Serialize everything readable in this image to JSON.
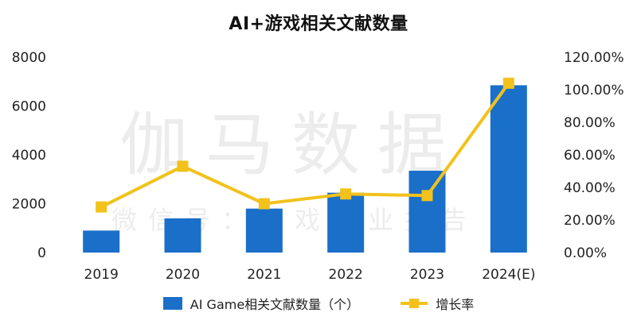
{
  "watermark": {
    "main": "伽马数据",
    "sub": "微信号：游戏产业报告"
  },
  "colors": {
    "bar": "#1a6fc9",
    "line": "#f2c21b",
    "axis_text": "#222222"
  },
  "chart_data": {
    "type": "bar+line",
    "title": "AI+游戏相关文献数量",
    "categories": [
      "2019",
      "2020",
      "2021",
      "2022",
      "2023",
      "2024(E)"
    ],
    "series": [
      {
        "name": "AI Game相关文献数量（个）",
        "type": "bar",
        "axis": "left",
        "values": [
          900,
          1400,
          1800,
          2450,
          3350,
          6850
        ]
      },
      {
        "name": "增长率",
        "type": "line",
        "axis": "right",
        "values": [
          28,
          53,
          30,
          36,
          35,
          104
        ]
      }
    ],
    "y_left": {
      "min": 0,
      "max": 8000,
      "ticks": [
        0,
        2000,
        4000,
        6000,
        8000
      ],
      "tick_labels": [
        "0",
        "2000",
        "4000",
        "6000",
        "8000"
      ]
    },
    "y_right": {
      "min": 0,
      "max": 120,
      "unit": "%",
      "ticks": [
        0,
        20,
        40,
        60,
        80,
        100,
        120
      ],
      "tick_labels": [
        "0.00%",
        "20.00%",
        "40.00%",
        "60.00%",
        "80.00%",
        "100.00%",
        "120.00%"
      ]
    },
    "grid": false,
    "legend_position": "bottom"
  }
}
